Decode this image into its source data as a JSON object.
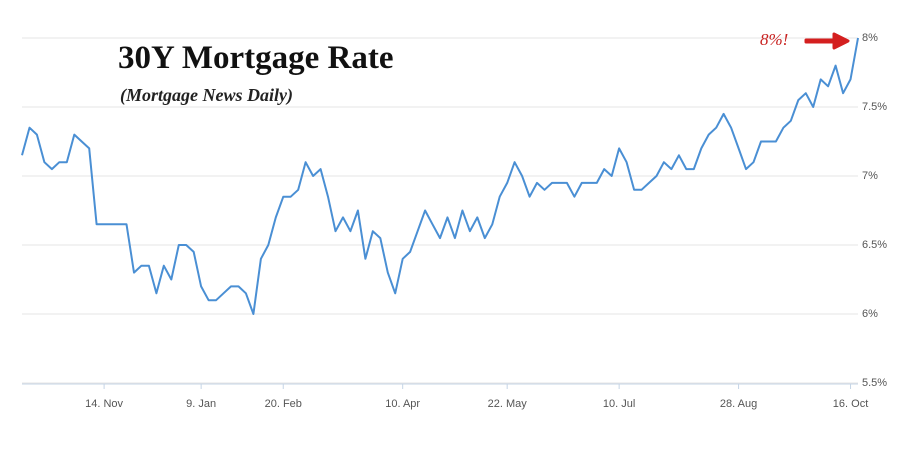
{
  "chart_data": {
    "type": "line",
    "title": "30Y Mortgage Rate",
    "subtitle": "(Mortgage News Daily)",
    "annotation": "8%!",
    "categories": [
      null,
      null,
      null,
      null,
      null,
      null,
      null,
      null,
      null,
      null,
      null,
      "14. Nov",
      null,
      null,
      null,
      null,
      null,
      null,
      null,
      null,
      null,
      null,
      null,
      null,
      "9. Jan",
      null,
      null,
      null,
      null,
      null,
      null,
      null,
      null,
      null,
      null,
      "20. Feb",
      null,
      null,
      null,
      null,
      null,
      null,
      null,
      null,
      null,
      null,
      null,
      null,
      null,
      null,
      null,
      "10. Apr",
      null,
      null,
      null,
      null,
      null,
      null,
      null,
      null,
      null,
      null,
      null,
      null,
      null,
      "22. May",
      null,
      null,
      null,
      null,
      null,
      null,
      null,
      null,
      null,
      null,
      null,
      null,
      null,
      null,
      "10. Jul",
      null,
      null,
      null,
      null,
      null,
      null,
      null,
      null,
      null,
      null,
      null,
      null,
      null,
      null,
      null,
      "28. Aug",
      null,
      null,
      null,
      null,
      null,
      null,
      null,
      null,
      null,
      null,
      null,
      null,
      null,
      null,
      "16. Oct",
      null
    ],
    "values": [
      7.15,
      7.35,
      7.3,
      7.1,
      7.05,
      7.1,
      7.1,
      7.3,
      7.25,
      7.2,
      6.65,
      6.65,
      6.65,
      6.65,
      6.65,
      6.3,
      6.35,
      6.35,
      6.15,
      6.35,
      6.25,
      6.5,
      6.5,
      6.45,
      6.2,
      6.1,
      6.1,
      6.15,
      6.2,
      6.2,
      6.15,
      6.0,
      6.4,
      6.5,
      6.7,
      6.85,
      6.85,
      6.9,
      7.1,
      7.0,
      7.05,
      6.85,
      6.6,
      6.7,
      6.6,
      6.75,
      6.4,
      6.6,
      6.55,
      6.3,
      6.15,
      6.4,
      6.45,
      6.6,
      6.75,
      6.65,
      6.55,
      6.7,
      6.55,
      6.75,
      6.6,
      6.7,
      6.55,
      6.65,
      6.85,
      6.95,
      7.1,
      7.0,
      6.85,
      6.95,
      6.9,
      6.95,
      6.95,
      6.95,
      6.85,
      6.95,
      6.95,
      6.95,
      7.05,
      7.0,
      7.2,
      7.1,
      6.9,
      6.9,
      6.95,
      7.0,
      7.1,
      7.05,
      7.15,
      7.05,
      7.05,
      7.2,
      7.3,
      7.35,
      7.45,
      7.35,
      7.2,
      7.05,
      7.1,
      7.25,
      7.25,
      7.25,
      7.35,
      7.4,
      7.55,
      7.6,
      7.5,
      7.7,
      7.65,
      7.8,
      7.6,
      7.7,
      8.0
    ],
    "color": "#4a8fd4",
    "ylim": [
      5.5,
      8
    ],
    "yticks": [
      {
        "value": 5.5,
        "label": "5.5%"
      },
      {
        "value": 6,
        "label": "6%"
      },
      {
        "value": 6.5,
        "label": "6.5%"
      },
      {
        "value": 7,
        "label": "7%"
      },
      {
        "value": 7.5,
        "label": "7.5%"
      },
      {
        "value": 8,
        "label": "8%"
      }
    ],
    "grid": true
  }
}
